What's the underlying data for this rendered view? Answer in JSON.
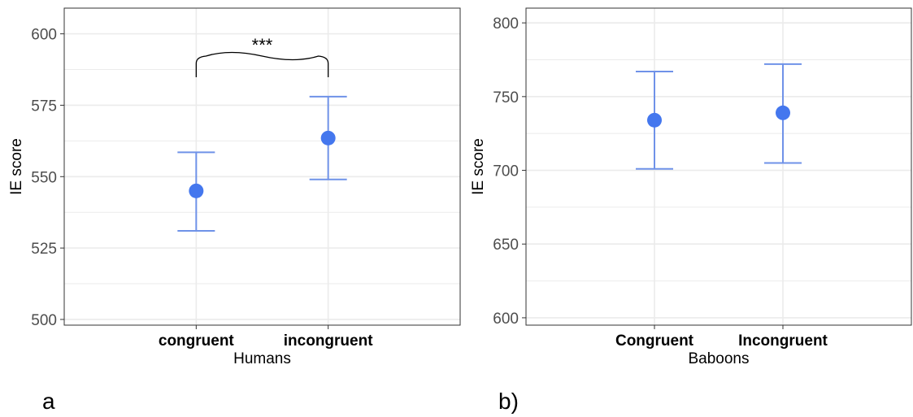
{
  "panels": [
    {
      "label": "a"
    },
    {
      "label": "b)"
    }
  ],
  "chart_data": [
    {
      "type": "scatter",
      "categories": [
        "congruent",
        "incongruent"
      ],
      "points": [
        {
          "category": "congruent",
          "mean": 545,
          "lower": 531,
          "upper": 558.5
        },
        {
          "category": "incongruent",
          "mean": 563.5,
          "lower": 549,
          "upper": 578
        }
      ],
      "xlabel": "Humans",
      "ylabel": "IE score",
      "ylim": [
        498,
        609
      ],
      "yticks": [
        500,
        525,
        550,
        575,
        600
      ],
      "significance": {
        "between": [
          "congruent",
          "incongruent"
        ],
        "label": "***"
      },
      "grid": true,
      "colors": {
        "point": "#4477ee",
        "errorbar": "#6f92e8",
        "grid": "#ebebeb",
        "border": "#333333"
      }
    },
    {
      "type": "scatter",
      "categories": [
        "Congruent",
        "Incongruent"
      ],
      "points": [
        {
          "category": "Congruent",
          "mean": 734,
          "lower": 701,
          "upper": 767
        },
        {
          "category": "Incongruent",
          "mean": 739,
          "lower": 705,
          "upper": 772
        }
      ],
      "xlabel": "Baboons",
      "ylabel": "IE score",
      "ylim": [
        595,
        810
      ],
      "yticks": [
        600,
        650,
        700,
        750,
        800
      ],
      "grid": true,
      "colors": {
        "point": "#4477ee",
        "errorbar": "#6f92e8",
        "grid": "#ebebeb",
        "border": "#333333"
      }
    }
  ]
}
